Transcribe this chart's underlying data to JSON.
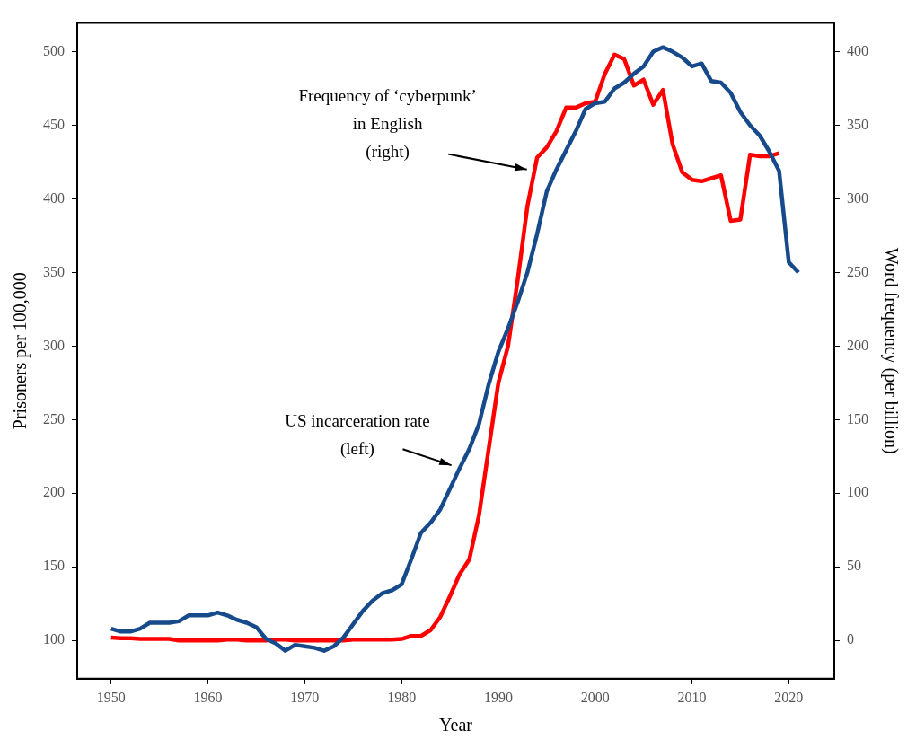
{
  "chart_data": {
    "type": "line",
    "xlabel": "Year",
    "ylabel": "Prisoners per 100,000",
    "y2label": "Word frequency (per billion)",
    "x": [
      1950,
      1951,
      1952,
      1953,
      1954,
      1955,
      1956,
      1957,
      1958,
      1959,
      1960,
      1961,
      1962,
      1963,
      1964,
      1965,
      1966,
      1967,
      1968,
      1969,
      1970,
      1971,
      1972,
      1973,
      1974,
      1975,
      1976,
      1977,
      1978,
      1979,
      1980,
      1981,
      1982,
      1983,
      1984,
      1985,
      1986,
      1987,
      1988,
      1989,
      1990,
      1991,
      1992,
      1993,
      1994,
      1995,
      1996,
      1997,
      1998,
      1999,
      2000,
      2001,
      2002,
      2003,
      2004,
      2005,
      2006,
      2007,
      2008,
      2009,
      2010,
      2011,
      2012,
      2013,
      2014,
      2015,
      2016,
      2017,
      2018,
      2019,
      2020,
      2021
    ],
    "series": [
      {
        "color": "#174a8b",
        "axis": "y",
        "values": [
          108,
          106,
          106,
          108,
          112,
          112,
          112,
          113,
          117,
          117,
          117,
          119,
          117,
          114,
          112,
          109,
          101,
          98,
          93,
          97,
          96,
          95,
          93,
          96,
          102,
          111,
          120,
          127,
          132,
          134,
          138,
          155,
          173,
          180,
          189,
          203,
          217,
          230,
          247,
          274,
          296,
          312,
          330,
          350,
          376,
          405,
          420,
          433,
          446,
          461,
          465,
          466,
          475,
          479,
          485,
          490,
          500,
          503,
          500,
          496,
          490,
          492,
          480,
          479,
          472,
          459,
          450,
          443,
          432,
          419,
          357,
          350
        ]
      },
      {
        "color": "#ff0000",
        "axis": "y2",
        "values": [
          2,
          1.5,
          1.5,
          1,
          1,
          1,
          1,
          0,
          0,
          0,
          0,
          0,
          0.5,
          0.5,
          0,
          0,
          0,
          0.5,
          0.5,
          0,
          0,
          0,
          0,
          0,
          0,
          0.5,
          0.5,
          0.5,
          0.5,
          0.5,
          1,
          3,
          3,
          7,
          16,
          30,
          45,
          55,
          85,
          130,
          175,
          200,
          245,
          295,
          328,
          335,
          346,
          362,
          362,
          365,
          366,
          385,
          398,
          395,
          377,
          381,
          364,
          374,
          337,
          318,
          313,
          312,
          314,
          316,
          285,
          286,
          330,
          329,
          329,
          331,
          null,
          null
        ]
      }
    ],
    "xlim": [
      1946.5,
      2024.7
    ],
    "xticks": [
      1950,
      1960,
      1970,
      1980,
      1990,
      2000,
      2010,
      2020
    ],
    "ylim": [
      74,
      519.5
    ],
    "yticks": [
      100,
      150,
      200,
      250,
      300,
      350,
      400,
      450,
      500
    ],
    "y2lim": [
      -26,
      419.5
    ],
    "y2ticks": [
      0,
      50,
      100,
      150,
      200,
      250,
      300,
      350,
      400
    ],
    "grid": false,
    "legend": false,
    "annotations": [
      "Frequency of ‘cyberpunk’\nin English\n(right)",
      "US incarceration rate\n(left)"
    ]
  }
}
